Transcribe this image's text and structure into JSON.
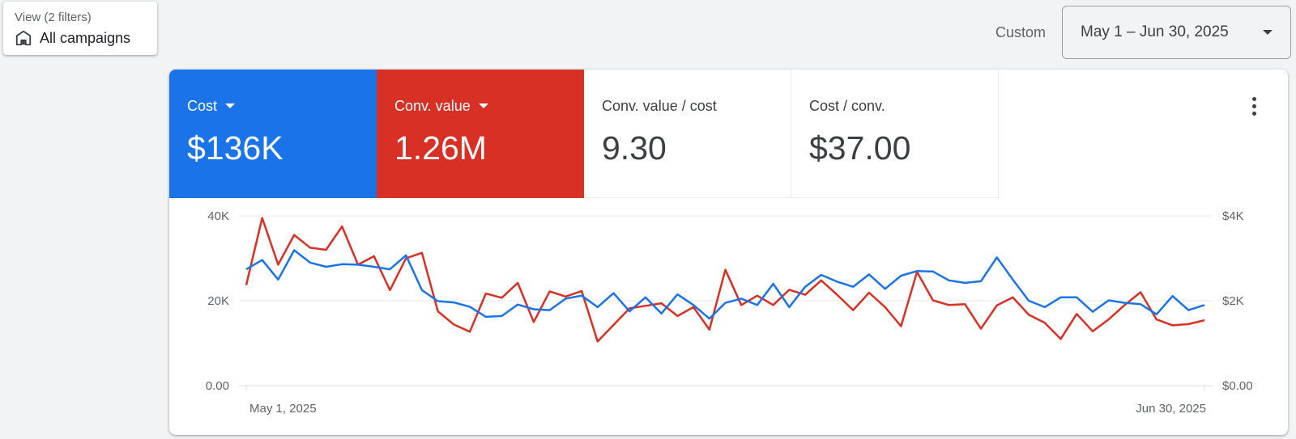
{
  "view": {
    "label": "View (2 filters)",
    "value": "All campaigns",
    "icon": "home-icon"
  },
  "date": {
    "preset": "Custom",
    "range": "May 1 – Jun 30, 2025"
  },
  "metrics": [
    {
      "label": "Cost",
      "value": "$136K",
      "color": "#1a73e8",
      "dropdown": true
    },
    {
      "label": "Conv. value",
      "value": "1.26M",
      "color": "#d93025",
      "dropdown": true
    },
    {
      "label": "Conv. value / cost",
      "value": "9.30"
    },
    {
      "label": "Cost / conv.",
      "value": "$37.00"
    }
  ],
  "chart_data": {
    "type": "line",
    "x_start_label": "May 1, 2025",
    "x_end_label": "Jun 30, 2025",
    "left_axis": {
      "ticks": [
        "40K",
        "20K",
        "0.00"
      ],
      "ylim": [
        0,
        40000
      ]
    },
    "right_axis": {
      "ticks": [
        "$4K",
        "$2K",
        "$0.00"
      ],
      "ylim": [
        0,
        4000
      ]
    },
    "grid": true,
    "series": [
      {
        "color": "#d93025",
        "axis": "left",
        "values": [
          23700,
          39500,
          28500,
          35500,
          32500,
          32000,
          37500,
          28500,
          30500,
          22500,
          30000,
          31300,
          17500,
          14400,
          12700,
          21700,
          20700,
          24200,
          15000,
          22200,
          21000,
          22300,
          10400,
          14300,
          18200,
          18800,
          19400,
          16400,
          18500,
          13200,
          27300,
          19000,
          21200,
          19000,
          22600,
          21400,
          24800,
          21400,
          17800,
          21900,
          18500,
          14000,
          26800,
          20100,
          19000,
          19200,
          13400,
          18900,
          20800,
          16700,
          14800,
          11000,
          16900,
          12800,
          15600,
          19000,
          22000,
          15600,
          14200,
          14500,
          15400
        ]
      },
      {
        "color": "#1a73e8",
        "axis": "right",
        "values": [
          2740,
          2960,
          2500,
          3190,
          2900,
          2800,
          2860,
          2850,
          2800,
          2740,
          3070,
          2250,
          1990,
          1960,
          1860,
          1620,
          1640,
          1910,
          1800,
          1780,
          2050,
          2120,
          1850,
          2180,
          1750,
          2080,
          1700,
          2150,
          1900,
          1580,
          1950,
          2050,
          1900,
          2400,
          1850,
          2330,
          2610,
          2450,
          2330,
          2620,
          2280,
          2590,
          2700,
          2690,
          2480,
          2420,
          2460,
          3020,
          2500,
          2000,
          1850,
          2080,
          2080,
          1740,
          2010,
          1950,
          1920,
          1680,
          2110,
          1780,
          1900
        ]
      }
    ]
  }
}
